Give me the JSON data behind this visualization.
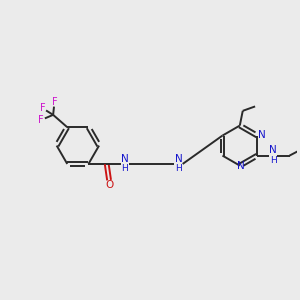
{
  "bg_color": "#ebebeb",
  "bond_color": "#2a2a2a",
  "nitrogen_color": "#1414cc",
  "oxygen_color": "#cc1414",
  "fluorine_color": "#cc14cc",
  "line_width": 1.4,
  "figsize": [
    3.0,
    3.0
  ],
  "dpi": 100,
  "xlim": [
    0,
    10
  ],
  "ylim": [
    0,
    10
  ]
}
